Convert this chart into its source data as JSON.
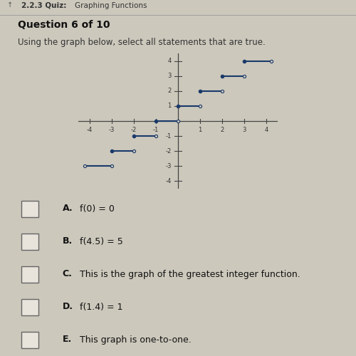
{
  "title_header": "2.2.3 Quiz:  Graphing Functions",
  "question": "Question 6 of 10",
  "instruction": "Using the graph below, select all statements that are true.",
  "bg_color": "#ccc8bc",
  "segments": [
    {
      "y": 4,
      "x_start": 3,
      "x_end": 4.2,
      "left_closed": true,
      "right_closed": false
    },
    {
      "y": 3,
      "x_start": 2,
      "x_end": 3,
      "left_closed": true,
      "right_closed": false
    },
    {
      "y": 2,
      "x_start": 1,
      "x_end": 2,
      "left_closed": true,
      "right_closed": false
    },
    {
      "y": 1,
      "x_start": 0,
      "x_end": 1,
      "left_closed": true,
      "right_closed": false
    },
    {
      "y": 0,
      "x_start": -1,
      "x_end": 0,
      "left_closed": true,
      "right_closed": false
    },
    {
      "y": -1,
      "x_start": -2,
      "x_end": -1,
      "left_closed": true,
      "right_closed": false
    },
    {
      "y": -2,
      "x_start": -3,
      "x_end": -2,
      "left_closed": true,
      "right_closed": false
    },
    {
      "y": -3,
      "x_start": -4.2,
      "x_end": -3,
      "left_closed": false,
      "right_closed": false
    }
  ],
  "xlim": [
    -4.5,
    4.5
  ],
  "ylim": [
    -4.5,
    4.5
  ],
  "xticks": [
    -4,
    -3,
    -2,
    -1,
    1,
    2,
    3,
    4
  ],
  "yticks": [
    -4,
    -3,
    -2,
    -1,
    1,
    2,
    3,
    4
  ],
  "line_color": "#1a3a6b",
  "dot_closed_color": "#1a3a6b",
  "dot_open_color": "#ccc8bc",
  "dot_size": 18,
  "line_width": 1.5,
  "choices": [
    [
      "A.",
      " f(0) = 0"
    ],
    [
      "B.",
      " f(4.5) = 5"
    ],
    [
      "C.",
      " This is the graph of the greatest integer function."
    ],
    [
      "D.",
      " f(1.4) = 1"
    ],
    [
      "E.",
      " This graph is one-to-one."
    ]
  ]
}
